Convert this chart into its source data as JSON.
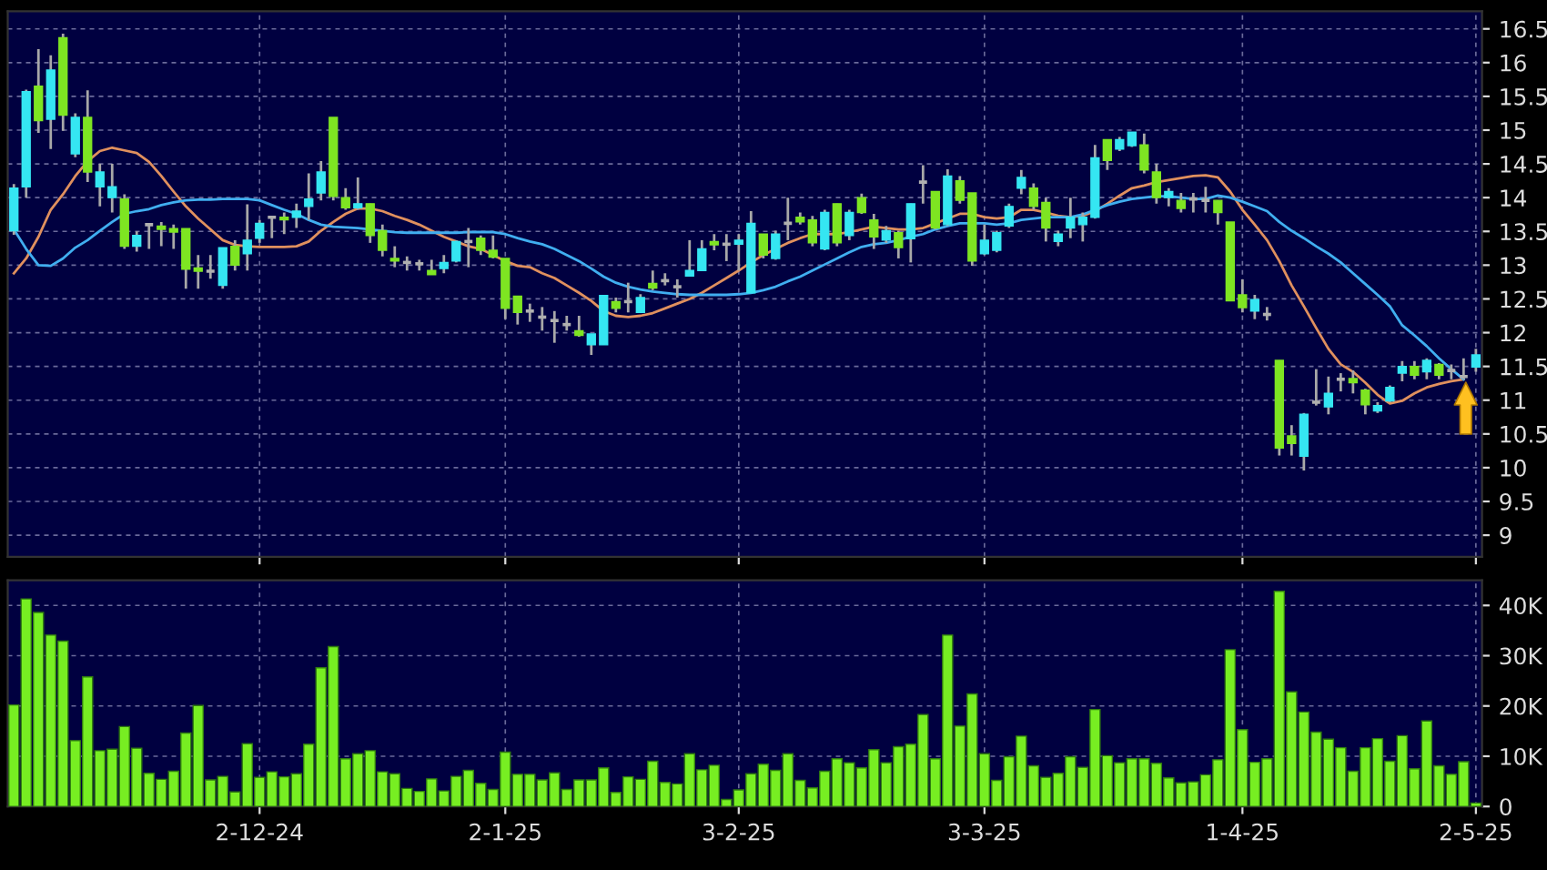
{
  "chart_data": [
    {
      "type": "candlestick",
      "categories": [
        null,
        null,
        null,
        null,
        null,
        null,
        null,
        null,
        null,
        null,
        null,
        null,
        null,
        null,
        null,
        null,
        null,
        null,
        null,
        null,
        null,
        null,
        null,
        null,
        null,
        null,
        null,
        null,
        null,
        null,
        null,
        null,
        null,
        null,
        null,
        null,
        null,
        null,
        null,
        null,
        null,
        null,
        null,
        null,
        null,
        null,
        null,
        null,
        null,
        null,
        null,
        null,
        null,
        null,
        null,
        null,
        null,
        null,
        null,
        null,
        null,
        null,
        null,
        null,
        null,
        null,
        null,
        null,
        null,
        null,
        null,
        null,
        null,
        null,
        null,
        null,
        null,
        null,
        null,
        null,
        null,
        null,
        null,
        null,
        null,
        null,
        null,
        null,
        null,
        null,
        null,
        null,
        null,
        null,
        null,
        null,
        null,
        null,
        null,
        null,
        null,
        null,
        null,
        null,
        null,
        null,
        null,
        null,
        null,
        null,
        null,
        null,
        null,
        null,
        null,
        null,
        null,
        null,
        null,
        null
      ],
      "ohlc": [
        [
          13.51,
          14.2,
          13.45,
          14.14
        ],
        [
          14.16,
          15.6,
          14.0,
          15.57
        ],
        [
          15.65,
          16.2,
          14.96,
          15.14
        ],
        [
          15.16,
          16.11,
          14.72,
          15.89
        ],
        [
          16.37,
          16.43,
          14.99,
          15.22
        ],
        [
          14.65,
          15.25,
          14.6,
          15.19
        ],
        [
          15.19,
          15.59,
          14.23,
          14.38
        ],
        [
          14.16,
          14.5,
          13.87,
          14.38
        ],
        [
          14.0,
          14.5,
          13.78,
          14.16
        ],
        [
          13.98,
          14.05,
          13.24,
          13.28
        ],
        [
          13.28,
          13.5,
          13.2,
          13.44
        ],
        [
          13.6,
          13.6,
          13.24,
          13.6
        ],
        [
          13.58,
          13.64,
          13.28,
          13.53
        ],
        [
          13.54,
          13.6,
          13.24,
          13.49
        ],
        [
          13.54,
          13.54,
          12.65,
          12.94
        ],
        [
          12.96,
          13.15,
          12.65,
          12.91
        ],
        [
          12.91,
          13.15,
          12.8,
          12.91
        ],
        [
          12.7,
          13.26,
          12.65,
          13.26
        ],
        [
          13.28,
          13.37,
          12.92,
          13.0
        ],
        [
          13.17,
          13.9,
          12.92,
          13.37
        ],
        [
          13.4,
          13.67,
          13.33,
          13.62
        ],
        [
          13.71,
          13.73,
          13.4,
          13.71
        ],
        [
          13.71,
          13.78,
          13.46,
          13.67
        ],
        [
          13.71,
          13.91,
          13.55,
          13.8
        ],
        [
          13.87,
          14.36,
          13.67,
          13.98
        ],
        [
          14.07,
          14.54,
          13.96,
          14.38
        ],
        [
          15.19,
          15.19,
          13.96,
          14.02
        ],
        [
          14.0,
          14.14,
          13.82,
          13.85
        ],
        [
          13.85,
          14.3,
          13.82,
          13.91
        ],
        [
          13.91,
          13.91,
          13.33,
          13.44
        ],
        [
          13.51,
          13.6,
          13.13,
          13.22
        ],
        [
          13.1,
          13.28,
          12.97,
          13.06
        ],
        [
          13.04,
          13.13,
          12.92,
          13.04
        ],
        [
          13.02,
          13.08,
          12.92,
          13.02
        ],
        [
          12.92,
          13.08,
          12.86,
          12.86
        ],
        [
          12.95,
          13.15,
          12.88,
          13.04
        ],
        [
          13.06,
          13.37,
          13.04,
          13.35
        ],
        [
          13.35,
          13.55,
          12.97,
          13.35
        ],
        [
          13.4,
          13.44,
          13.15,
          13.22
        ],
        [
          13.22,
          13.44,
          13.1,
          13.12
        ],
        [
          13.1,
          13.1,
          12.2,
          12.36
        ],
        [
          12.54,
          12.54,
          12.12,
          12.3
        ],
        [
          12.32,
          12.43,
          12.16,
          12.32
        ],
        [
          12.23,
          12.38,
          12.03,
          12.23
        ],
        [
          12.18,
          12.32,
          11.85,
          12.18
        ],
        [
          12.12,
          12.25,
          12.03,
          12.12
        ],
        [
          12.03,
          12.25,
          11.94,
          11.96
        ],
        [
          11.82,
          11.98,
          11.67,
          11.98
        ],
        [
          11.82,
          12.55,
          11.82,
          12.55
        ],
        [
          12.46,
          12.52,
          12.3,
          12.36
        ],
        [
          12.46,
          12.74,
          12.3,
          12.46
        ],
        [
          12.3,
          12.57,
          12.3,
          12.52
        ],
        [
          12.73,
          12.92,
          12.63,
          12.66
        ],
        [
          12.77,
          12.88,
          12.7,
          12.77
        ],
        [
          12.68,
          12.79,
          12.52,
          12.68
        ],
        [
          12.84,
          13.37,
          12.83,
          12.92
        ],
        [
          12.92,
          13.37,
          12.92,
          13.24
        ],
        [
          13.35,
          13.46,
          13.22,
          13.3
        ],
        [
          13.31,
          13.46,
          13.06,
          13.31
        ],
        [
          13.31,
          13.46,
          12.92,
          13.37
        ],
        [
          12.59,
          13.8,
          12.59,
          13.62
        ],
        [
          13.46,
          13.46,
          13.1,
          13.15
        ],
        [
          13.1,
          13.51,
          13.08,
          13.46
        ],
        [
          13.62,
          14.0,
          13.37,
          13.62
        ],
        [
          13.71,
          13.78,
          13.6,
          13.64
        ],
        [
          13.67,
          13.73,
          13.28,
          13.33
        ],
        [
          13.24,
          13.82,
          13.22,
          13.78
        ],
        [
          13.91,
          13.91,
          13.28,
          13.33
        ],
        [
          13.44,
          13.82,
          13.37,
          13.78
        ],
        [
          14.0,
          14.06,
          13.76,
          13.78
        ],
        [
          13.67,
          13.76,
          13.24,
          13.42
        ],
        [
          13.37,
          13.58,
          13.33,
          13.51
        ],
        [
          13.48,
          13.51,
          13.1,
          13.26
        ],
        [
          13.39,
          13.91,
          13.04,
          13.91
        ],
        [
          14.23,
          14.48,
          13.91,
          14.23
        ],
        [
          14.09,
          14.09,
          13.53,
          13.55
        ],
        [
          13.6,
          14.42,
          13.58,
          14.32
        ],
        [
          14.25,
          14.32,
          13.91,
          13.96
        ],
        [
          14.07,
          14.07,
          12.99,
          13.06
        ],
        [
          13.17,
          13.6,
          13.15,
          13.37
        ],
        [
          13.22,
          13.51,
          13.19,
          13.48
        ],
        [
          13.58,
          13.91,
          13.55,
          13.87
        ],
        [
          14.14,
          14.41,
          14.05,
          14.3
        ],
        [
          14.14,
          14.21,
          13.82,
          13.87
        ],
        [
          13.93,
          14.0,
          13.35,
          13.55
        ],
        [
          13.35,
          13.51,
          13.28,
          13.46
        ],
        [
          13.55,
          14.0,
          13.4,
          13.71
        ],
        [
          13.6,
          13.78,
          13.35,
          13.71
        ],
        [
          13.71,
          14.78,
          13.69,
          14.59
        ],
        [
          14.86,
          14.86,
          14.41,
          14.55
        ],
        [
          14.72,
          14.9,
          14.69,
          14.86
        ],
        [
          14.77,
          14.97,
          14.75,
          14.97
        ],
        [
          14.78,
          14.95,
          14.36,
          14.41
        ],
        [
          14.38,
          14.5,
          13.91,
          14.0
        ],
        [
          14.0,
          14.14,
          13.87,
          14.09
        ],
        [
          13.96,
          14.07,
          13.78,
          13.84
        ],
        [
          13.98,
          14.07,
          13.78,
          13.98
        ],
        [
          13.96,
          14.16,
          13.78,
          13.96
        ],
        [
          13.96,
          13.96,
          13.6,
          13.78
        ],
        [
          13.64,
          13.64,
          12.47,
          12.47
        ],
        [
          12.56,
          12.79,
          12.3,
          12.37
        ],
        [
          12.32,
          12.56,
          12.2,
          12.49
        ],
        [
          12.27,
          12.38,
          12.18,
          12.27
        ],
        [
          11.59,
          11.59,
          10.18,
          10.29
        ],
        [
          10.47,
          10.63,
          10.18,
          10.36
        ],
        [
          10.17,
          10.81,
          9.96,
          10.79
        ],
        [
          10.97,
          11.46,
          10.92,
          10.97
        ],
        [
          10.9,
          11.35,
          10.79,
          11.1
        ],
        [
          11.31,
          11.4,
          11.13,
          11.31
        ],
        [
          11.32,
          11.44,
          11.1,
          11.26
        ],
        [
          11.15,
          11.17,
          10.79,
          10.93
        ],
        [
          10.84,
          10.97,
          10.81,
          10.92
        ],
        [
          10.99,
          11.22,
          10.97,
          11.19
        ],
        [
          11.4,
          11.58,
          11.28,
          11.5
        ],
        [
          11.5,
          11.58,
          11.31,
          11.37
        ],
        [
          11.42,
          11.62,
          11.31,
          11.59
        ],
        [
          11.53,
          11.55,
          11.31,
          11.37
        ],
        [
          11.44,
          11.53,
          11.31,
          11.44
        ],
        [
          11.35,
          11.62,
          11.31,
          11.35
        ],
        [
          11.49,
          11.76,
          11.42,
          11.67
        ]
      ],
      "colors": [
        "#35e6f2",
        "#35e6f2",
        "#7ee522",
        "#35e6f2",
        "#7ee522",
        "#35e6f2",
        "#7ee522",
        "#35e6f2",
        "#35e6f2",
        "#7ee522",
        "#35e6f2",
        "#b0b0b0",
        "#7ee522",
        "#7ee522",
        "#7ee522",
        "#7ee522",
        "#b0b0b0",
        "#35e6f2",
        "#7ee522",
        "#35e6f2",
        "#35e6f2",
        "#b0b0b0",
        "#7ee522",
        "#35e6f2",
        "#35e6f2",
        "#35e6f2",
        "#7ee522",
        "#7ee522",
        "#35e6f2",
        "#7ee522",
        "#7ee522",
        "#7ee522",
        "#b0b0b0",
        "#b0b0b0",
        "#7ee522",
        "#35e6f2",
        "#35e6f2",
        "#b0b0b0",
        "#7ee522",
        "#7ee522",
        "#7ee522",
        "#7ee522",
        "#b0b0b0",
        "#b0b0b0",
        "#b0b0b0",
        "#b0b0b0",
        "#7ee522",
        "#35e6f2",
        "#35e6f2",
        "#7ee522",
        "#b0b0b0",
        "#35e6f2",
        "#7ee522",
        "#b0b0b0",
        "#b0b0b0",
        "#35e6f2",
        "#35e6f2",
        "#7ee522",
        "#b0b0b0",
        "#35e6f2",
        "#35e6f2",
        "#7ee522",
        "#35e6f2",
        "#b0b0b0",
        "#7ee522",
        "#7ee522",
        "#35e6f2",
        "#7ee522",
        "#35e6f2",
        "#7ee522",
        "#7ee522",
        "#35e6f2",
        "#7ee522",
        "#35e6f2",
        "#b0b0b0",
        "#7ee522",
        "#35e6f2",
        "#7ee522",
        "#7ee522",
        "#35e6f2",
        "#35e6f2",
        "#35e6f2",
        "#35e6f2",
        "#7ee522",
        "#7ee522",
        "#35e6f2",
        "#35e6f2",
        "#35e6f2",
        "#35e6f2",
        "#7ee522",
        "#35e6f2",
        "#35e6f2",
        "#7ee522",
        "#7ee522",
        "#35e6f2",
        "#7ee522",
        "#b0b0b0",
        "#b0b0b0",
        "#7ee522",
        "#7ee522",
        "#7ee522",
        "#35e6f2",
        "#b0b0b0",
        "#7ee522",
        "#7ee522",
        "#35e6f2",
        "#b0b0b0",
        "#35e6f2",
        "#b0b0b0",
        "#7ee522",
        "#7ee522",
        "#35e6f2",
        "#35e6f2",
        "#35e6f2",
        "#7ee522",
        "#35e6f2",
        "#7ee522",
        "#b0b0b0",
        "#b0b0b0",
        "#35e6f2"
      ],
      "series": [
        {
          "type": "line",
          "color": "#e0905e",
          "values": [
            12.88,
            13.1,
            13.42,
            13.82,
            14.05,
            14.32,
            14.54,
            14.69,
            14.74,
            14.7,
            14.66,
            14.53,
            14.32,
            14.09,
            13.87,
            13.69,
            13.53,
            13.37,
            13.3,
            13.28,
            13.27,
            13.27,
            13.27,
            13.28,
            13.35,
            13.51,
            13.64,
            13.76,
            13.84,
            13.84,
            13.8,
            13.73,
            13.67,
            13.6,
            13.51,
            13.42,
            13.35,
            13.28,
            13.24,
            13.15,
            13.06,
            12.99,
            12.97,
            12.88,
            12.81,
            12.7,
            12.59,
            12.47,
            12.32,
            12.25,
            12.23,
            12.25,
            12.29,
            12.36,
            12.43,
            12.5,
            12.59,
            12.7,
            12.81,
            12.92,
            13.04,
            13.15,
            13.24,
            13.33,
            13.4,
            13.46,
            13.46,
            13.46,
            13.49,
            13.53,
            13.57,
            13.55,
            13.53,
            13.53,
            13.55,
            13.62,
            13.69,
            13.76,
            13.76,
            13.71,
            13.69,
            13.71,
            13.82,
            13.82,
            13.78,
            13.73,
            13.71,
            13.73,
            13.8,
            13.91,
            14.03,
            14.14,
            14.18,
            14.23,
            14.26,
            14.29,
            14.32,
            14.33,
            14.3,
            14.09,
            13.82,
            13.6,
            13.37,
            13.06,
            12.7,
            12.39,
            12.07,
            11.76,
            11.53,
            11.42,
            11.26,
            11.08,
            10.95,
            10.99,
            11.1,
            11.19,
            11.24,
            11.28,
            11.31,
            null
          ]
        },
        {
          "type": "line",
          "color": "#40aef0",
          "values": [
            13.53,
            13.24,
            13.0,
            12.99,
            13.1,
            13.26,
            13.37,
            13.51,
            13.64,
            13.76,
            13.8,
            13.83,
            13.89,
            13.93,
            13.96,
            13.97,
            13.97,
            13.98,
            13.98,
            13.98,
            13.96,
            13.89,
            13.82,
            13.76,
            13.67,
            13.6,
            13.57,
            13.56,
            13.55,
            13.53,
            13.51,
            13.49,
            13.48,
            13.48,
            13.48,
            13.48,
            13.48,
            13.49,
            13.49,
            13.49,
            13.46,
            13.4,
            13.35,
            13.31,
            13.24,
            13.15,
            13.06,
            12.95,
            12.83,
            12.74,
            12.68,
            12.64,
            12.61,
            12.59,
            12.57,
            12.56,
            12.56,
            12.56,
            12.56,
            12.57,
            12.59,
            12.63,
            12.68,
            12.76,
            12.83,
            12.92,
            13.01,
            13.1,
            13.19,
            13.27,
            13.31,
            13.33,
            13.37,
            13.42,
            13.46,
            13.53,
            13.58,
            13.62,
            13.62,
            13.62,
            13.6,
            13.62,
            13.67,
            13.69,
            13.71,
            13.71,
            13.71,
            13.75,
            13.82,
            13.89,
            13.94,
            13.98,
            14.0,
            14.02,
            14.02,
            14.0,
            13.98,
            13.98,
            14.03,
            14.0,
            13.94,
            13.87,
            13.8,
            13.64,
            13.51,
            13.4,
            13.28,
            13.17,
            13.04,
            12.88,
            12.72,
            12.56,
            12.39,
            12.11,
            11.96,
            11.8,
            11.62,
            11.46,
            11.31,
            null
          ]
        }
      ],
      "ylim": [
        8.68,
        16.76
      ],
      "yticks": [
        9,
        9.5,
        10,
        10.5,
        11,
        11.5,
        12,
        12.5,
        13,
        13.5,
        14,
        14.5,
        15,
        15.5,
        16,
        16.5
      ],
      "grid": true
    },
    {
      "type": "bar",
      "categories": [
        null,
        null,
        null,
        null,
        null,
        null,
        null,
        null,
        null,
        null,
        null,
        null,
        null,
        null,
        null,
        null,
        null,
        null,
        null,
        null,
        "2-12-24",
        null,
        null,
        null,
        null,
        null,
        null,
        null,
        null,
        null,
        null,
        null,
        null,
        null,
        null,
        null,
        null,
        null,
        null,
        null,
        "2-1-25",
        null,
        null,
        null,
        null,
        null,
        null,
        null,
        null,
        null,
        null,
        null,
        null,
        null,
        null,
        null,
        null,
        null,
        null,
        "3-2-25",
        null,
        null,
        null,
        null,
        null,
        null,
        null,
        null,
        null,
        null,
        null,
        null,
        null,
        null,
        null,
        null,
        null,
        null,
        null,
        "3-3-25",
        null,
        null,
        null,
        null,
        null,
        null,
        null,
        null,
        null,
        null,
        null,
        null,
        null,
        null,
        null,
        null,
        null,
        null,
        null,
        null,
        "1-4-25",
        null,
        null,
        null,
        null,
        null,
        null,
        null,
        null,
        null,
        null,
        null,
        null,
        null,
        null,
        null,
        null,
        null,
        null,
        "2-5-25"
      ],
      "values": [
        20.2,
        41.3,
        38.6,
        34.1,
        32.9,
        13.1,
        25.8,
        11.1,
        11.4,
        15.9,
        11.6,
        6.6,
        5.4,
        7.0,
        14.6,
        20.1,
        5.3,
        6.0,
        2.9,
        12.5,
        5.8,
        6.9,
        5.9,
        6.5,
        12.4,
        27.6,
        31.8,
        9.5,
        10.5,
        11.1,
        6.9,
        6.5,
        3.6,
        3.0,
        5.5,
        3.1,
        6.0,
        7.2,
        4.6,
        3.4,
        10.8,
        6.4,
        6.4,
        5.3,
        6.7,
        3.4,
        5.3,
        5.3,
        7.7,
        2.8,
        5.9,
        5.4,
        9.0,
        4.8,
        4.5,
        10.5,
        7.3,
        8.2,
        1.4,
        3.3,
        6.5,
        8.4,
        7.2,
        10.5,
        5.2,
        3.7,
        7.0,
        9.5,
        8.7,
        7.7,
        11.3,
        8.7,
        11.9,
        12.4,
        18.3,
        9.5,
        34.1,
        16.0,
        22.4,
        10.5,
        5.2,
        9.9,
        14.0,
        8.1,
        5.8,
        6.6,
        9.9,
        7.8,
        19.3,
        10.1,
        8.7,
        9.5,
        9.5,
        8.6,
        5.7,
        4.7,
        4.9,
        6.3,
        9.3,
        31.2,
        15.3,
        8.8,
        9.5,
        42.8,
        22.8,
        18.8,
        14.8,
        13.4,
        11.7,
        7.0,
        11.7,
        13.5,
        9.0,
        14.1,
        7.5,
        17.0,
        8.1,
        6.4,
        8.9,
        0.7
      ],
      "color": "#77ee22",
      "ylim": [
        0,
        45
      ],
      "yticks": [
        0,
        {
          "value": 10,
          "label": "10K"
        },
        {
          "value": 20,
          "label": "20K"
        },
        {
          "value": 30,
          "label": "30K"
        },
        {
          "value": 40,
          "label": "40K"
        }
      ],
      "grid": true
    }
  ]
}
